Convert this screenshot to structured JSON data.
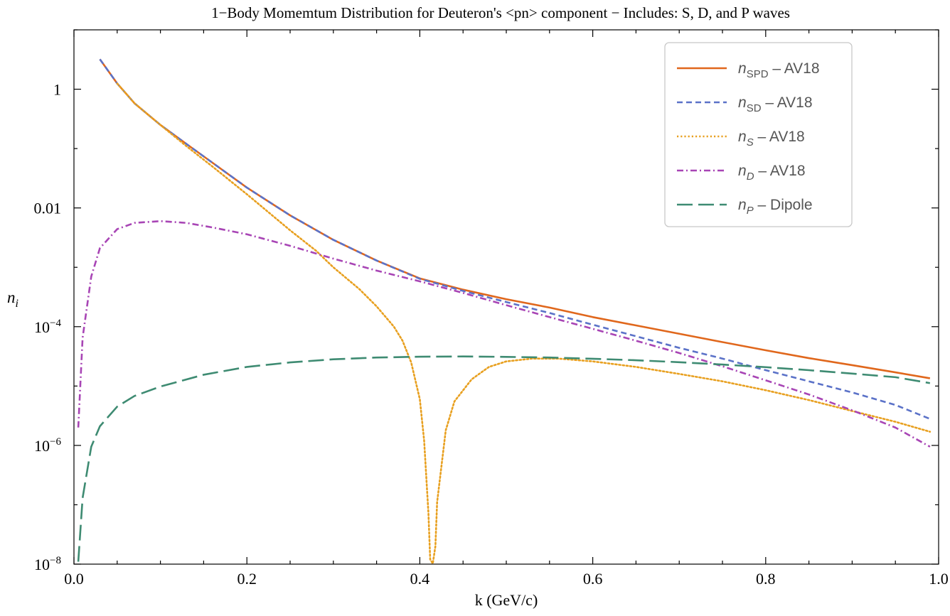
{
  "chart_data": {
    "type": "line",
    "title": "1−Body Momemtum Distribution for Deuteron's <pn> component − Includes: S, D, and P waves",
    "xlabel": "k (GeV/c)",
    "ylabel": "n",
    "ylabel_sub": "i",
    "y_scale": "log",
    "xlim": [
      0.0,
      1.0
    ],
    "ylim": [
      1e-08,
      10
    ],
    "x_ticks": [
      "0.0",
      "0.2",
      "0.4",
      "0.6",
      "0.8",
      "1.0"
    ],
    "y_ticks": [
      {
        "base": "10",
        "exp": "−8",
        "plain": ""
      },
      {
        "base": "10",
        "exp": "−6",
        "plain": ""
      },
      {
        "base": "10",
        "exp": "−4",
        "plain": ""
      },
      {
        "base": "",
        "exp": "",
        "plain": "0.01"
      },
      {
        "base": "",
        "exp": "",
        "plain": "1"
      }
    ],
    "legend_position": "top-right",
    "grid": false,
    "series": [
      {
        "name": "n_SPD – AV18",
        "legend": {
          "var": "n",
          "sub": "SPD",
          "sub_italic": false,
          "suffix": " – AV18"
        },
        "color": "#E0671C",
        "dash": "solid",
        "points": [
          [
            0.03,
            3.2
          ],
          [
            0.05,
            1.25
          ],
          [
            0.07,
            0.58
          ],
          [
            0.1,
            0.25
          ],
          [
            0.13,
            0.12
          ],
          [
            0.16,
            0.058
          ],
          [
            0.2,
            0.022
          ],
          [
            0.25,
            0.0075
          ],
          [
            0.3,
            0.0029
          ],
          [
            0.35,
            0.0013
          ],
          [
            0.4,
            0.00065
          ],
          [
            0.45,
            0.00042
          ],
          [
            0.5,
            0.00029
          ],
          [
            0.55,
            0.00021
          ],
          [
            0.6,
            0.000145
          ],
          [
            0.65,
            0.000105
          ],
          [
            0.7,
            7.6e-05
          ],
          [
            0.75,
            5.5e-05
          ],
          [
            0.8,
            4e-05
          ],
          [
            0.85,
            2.95e-05
          ],
          [
            0.9,
            2.25e-05
          ],
          [
            0.95,
            1.7e-05
          ],
          [
            0.99,
            1.35e-05
          ]
        ]
      },
      {
        "name": "n_SD – AV18",
        "legend": {
          "var": "n",
          "sub": "SD",
          "sub_italic": false,
          "suffix": " – AV18"
        },
        "color": "#5B72C8",
        "dash": "dashed",
        "points": [
          [
            0.03,
            3.2
          ],
          [
            0.05,
            1.25
          ],
          [
            0.07,
            0.58
          ],
          [
            0.1,
            0.25
          ],
          [
            0.13,
            0.12
          ],
          [
            0.16,
            0.058
          ],
          [
            0.2,
            0.022
          ],
          [
            0.25,
            0.0075
          ],
          [
            0.3,
            0.0029
          ],
          [
            0.35,
            0.0013
          ],
          [
            0.4,
            0.00064
          ],
          [
            0.45,
            0.0004
          ],
          [
            0.5,
            0.00026
          ],
          [
            0.55,
            0.00017
          ],
          [
            0.6,
            0.000108
          ],
          [
            0.65,
            6.9e-05
          ],
          [
            0.7,
            4.4e-05
          ],
          [
            0.75,
            2.9e-05
          ],
          [
            0.8,
            1.85e-05
          ],
          [
            0.85,
            1.2e-05
          ],
          [
            0.9,
            7.8e-06
          ],
          [
            0.95,
            4.8e-06
          ],
          [
            0.99,
            2.8e-06
          ]
        ]
      },
      {
        "name": "n_S – AV18",
        "legend": {
          "var": "n",
          "sub": "S",
          "sub_italic": true,
          "suffix": " – AV18"
        },
        "color": "#E8A020",
        "dash": "dotted",
        "points": [
          [
            0.05,
            1.25
          ],
          [
            0.07,
            0.58
          ],
          [
            0.1,
            0.25
          ],
          [
            0.13,
            0.11
          ],
          [
            0.16,
            0.05
          ],
          [
            0.2,
            0.017
          ],
          [
            0.25,
            0.0042
          ],
          [
            0.28,
            0.0019
          ],
          [
            0.3,
            0.001
          ],
          [
            0.33,
            0.00043
          ],
          [
            0.35,
            0.00022
          ],
          [
            0.37,
            0.0001
          ],
          [
            0.38,
            5.8e-05
          ],
          [
            0.39,
            2.5e-05
          ],
          [
            0.4,
            6e-06
          ],
          [
            0.405,
            1.2e-06
          ],
          [
            0.41,
            7e-08
          ],
          [
            0.412,
            1.2e-08
          ],
          [
            0.415,
            1.02e-08
          ],
          [
            0.418,
            2e-08
          ],
          [
            0.42,
            1.1e-07
          ],
          [
            0.43,
            1.8e-06
          ],
          [
            0.44,
            5.5e-06
          ],
          [
            0.46,
            1.3e-05
          ],
          [
            0.48,
            2.1e-05
          ],
          [
            0.5,
            2.6e-05
          ],
          [
            0.53,
            2.9e-05
          ],
          [
            0.56,
            2.9e-05
          ],
          [
            0.6,
            2.6e-05
          ],
          [
            0.65,
            2.1e-05
          ],
          [
            0.7,
            1.6e-05
          ],
          [
            0.75,
            1.2e-05
          ],
          [
            0.8,
            8.5e-06
          ],
          [
            0.85,
            5.8e-06
          ],
          [
            0.9,
            3.8e-06
          ],
          [
            0.95,
            2.5e-06
          ],
          [
            0.99,
            1.7e-06
          ]
        ]
      },
      {
        "name": "n_D – AV18",
        "legend": {
          "var": "n",
          "sub": "D",
          "sub_italic": true,
          "suffix": " – AV18"
        },
        "color": "#A845B5",
        "dash": "dashdot",
        "points": [
          [
            0.005,
            2e-06
          ],
          [
            0.01,
            6.5e-05
          ],
          [
            0.02,
            0.0007
          ],
          [
            0.03,
            0.0021
          ],
          [
            0.05,
            0.0044
          ],
          [
            0.07,
            0.0056
          ],
          [
            0.1,
            0.006
          ],
          [
            0.13,
            0.0056
          ],
          [
            0.16,
            0.0047
          ],
          [
            0.2,
            0.0036
          ],
          [
            0.25,
            0.0023
          ],
          [
            0.3,
            0.0014
          ],
          [
            0.35,
            0.00088
          ],
          [
            0.4,
            0.00058
          ],
          [
            0.45,
            0.00037
          ],
          [
            0.5,
            0.00023
          ],
          [
            0.55,
            0.000145
          ],
          [
            0.6,
            9.2e-05
          ],
          [
            0.65,
            5.8e-05
          ],
          [
            0.7,
            3.6e-05
          ],
          [
            0.75,
            2.15e-05
          ],
          [
            0.8,
            1.25e-05
          ],
          [
            0.85,
            7.2e-06
          ],
          [
            0.9,
            3.9e-06
          ],
          [
            0.95,
            2e-06
          ],
          [
            0.99,
            9.5e-07
          ]
        ]
      },
      {
        "name": "n_P – Dipole",
        "legend": {
          "var": "n",
          "sub": "P",
          "sub_italic": true,
          "suffix": " – Dipole"
        },
        "color": "#3E8B72",
        "dash": "longdash",
        "points": [
          [
            0.005,
            1.1e-08
          ],
          [
            0.01,
            1.3e-07
          ],
          [
            0.02,
            9.5e-07
          ],
          [
            0.03,
            2.1e-06
          ],
          [
            0.05,
            4.5e-06
          ],
          [
            0.07,
            6.8e-06
          ],
          [
            0.1,
            9.8e-06
          ],
          [
            0.15,
            1.55e-05
          ],
          [
            0.2,
            2.1e-05
          ],
          [
            0.25,
            2.5e-05
          ],
          [
            0.3,
            2.82e-05
          ],
          [
            0.35,
            3.02e-05
          ],
          [
            0.4,
            3.12e-05
          ],
          [
            0.45,
            3.15e-05
          ],
          [
            0.5,
            3.1e-05
          ],
          [
            0.55,
            3.02e-05
          ],
          [
            0.6,
            2.88e-05
          ],
          [
            0.65,
            2.72e-05
          ],
          [
            0.7,
            2.52e-05
          ],
          [
            0.75,
            2.3e-05
          ],
          [
            0.8,
            2.08e-05
          ],
          [
            0.85,
            1.85e-05
          ],
          [
            0.9,
            1.62e-05
          ],
          [
            0.95,
            1.41e-05
          ],
          [
            0.99,
            1.12e-05
          ]
        ]
      }
    ]
  }
}
